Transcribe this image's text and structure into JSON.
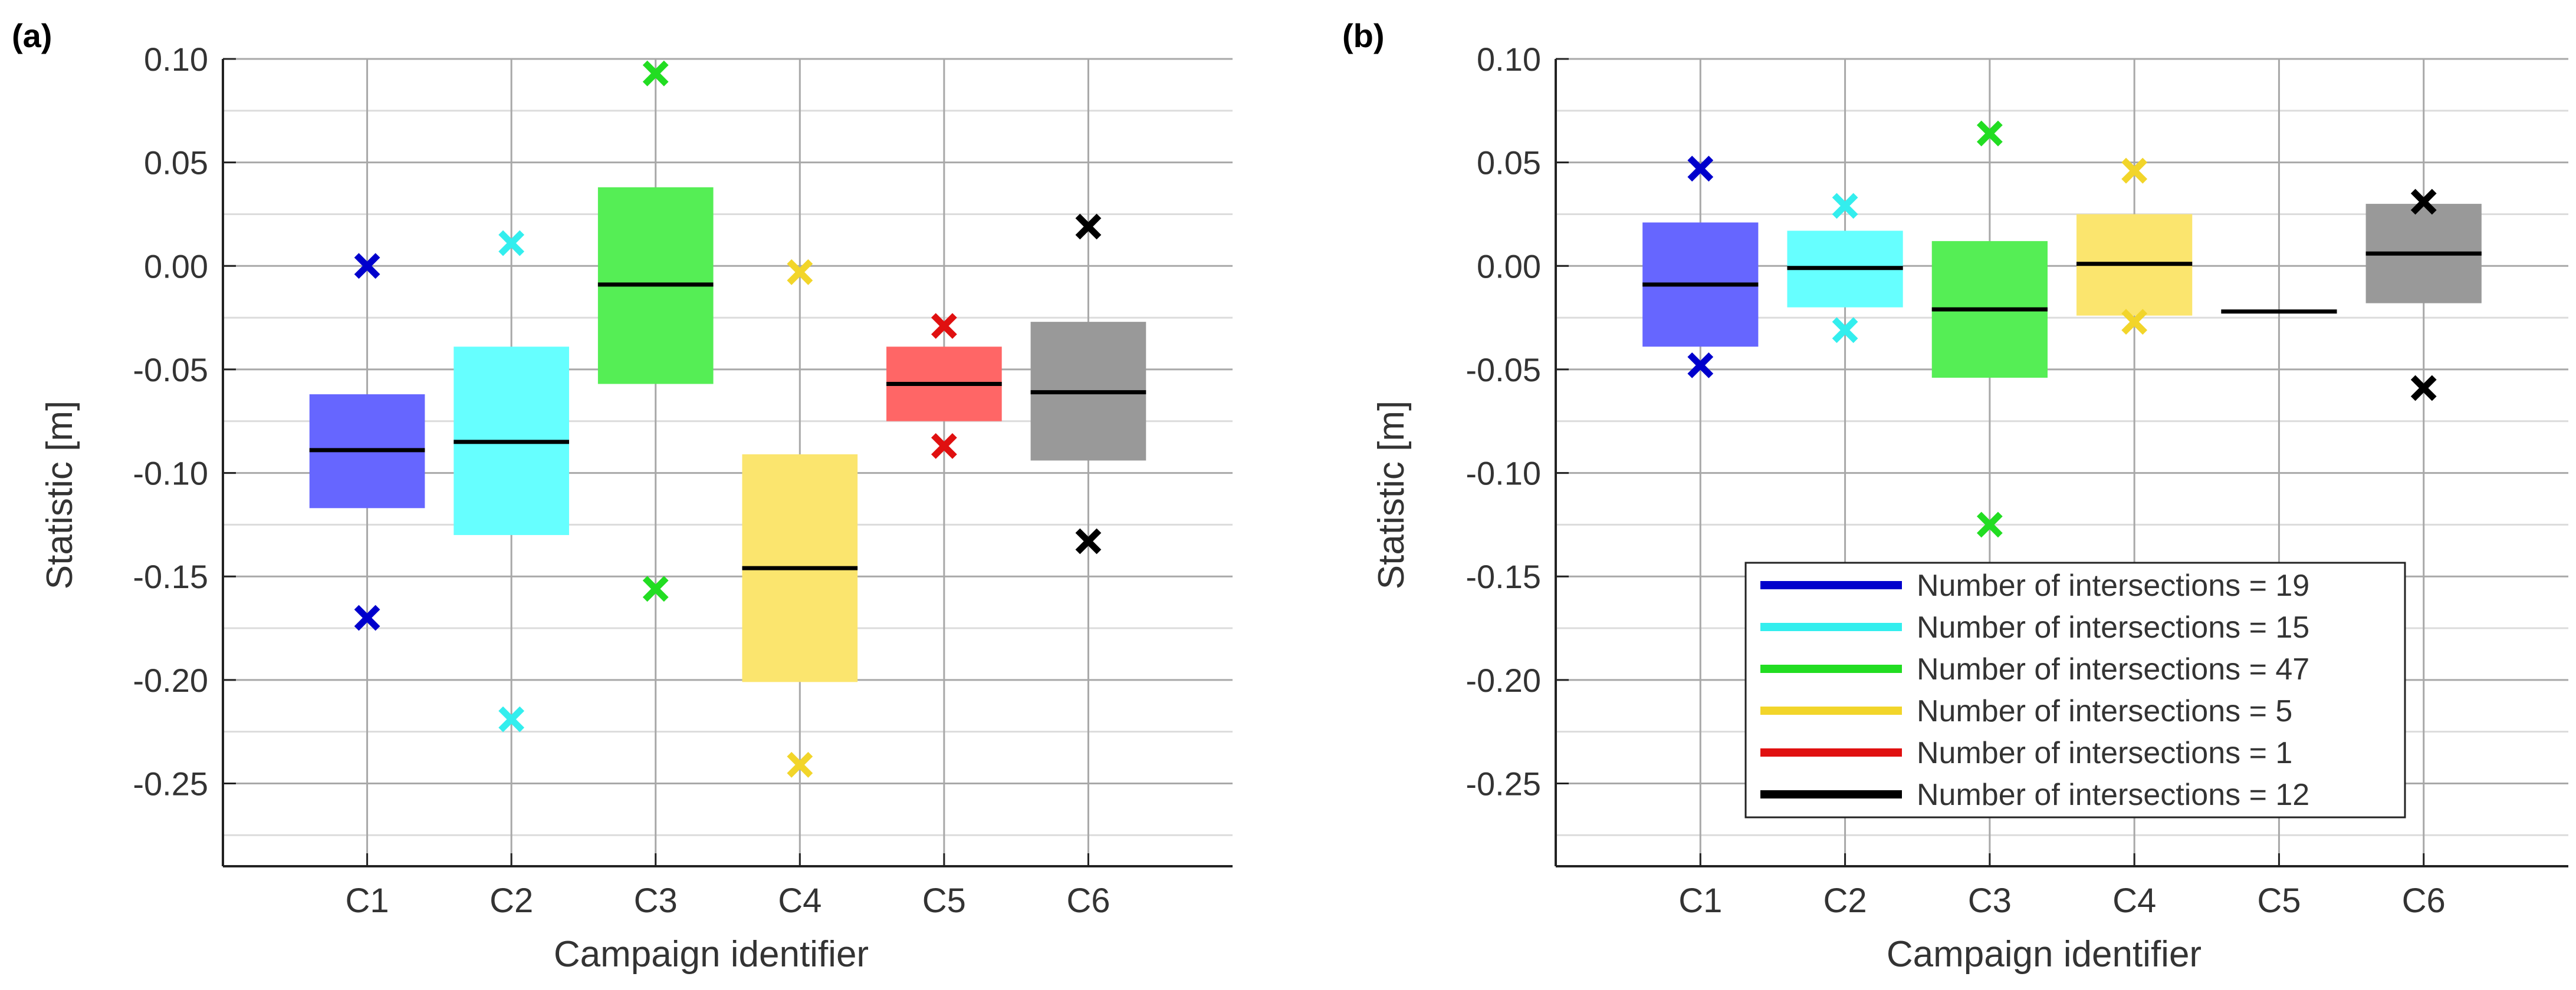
{
  "chart_data": [
    {
      "panel_label": "(a)",
      "type": "box",
      "xlabel": "Campaign identifier",
      "ylabel": "Statistic [m]",
      "ylim": [
        -0.29,
        0.1
      ],
      "yticks": [
        0.1,
        0.05,
        0.0,
        -0.05,
        -0.1,
        -0.15,
        -0.2,
        -0.25
      ],
      "ytick_labels": [
        "0.10",
        "0.05",
        "0.00",
        "-0.05",
        "-0.10",
        "-0.15",
        "-0.20",
        "-0.25"
      ],
      "grid": true,
      "categories": [
        "C1",
        "C2",
        "C3",
        "C4",
        "C5",
        "C6"
      ],
      "boxes": [
        {
          "campaign": "C1",
          "q1": -0.117,
          "q3": -0.062,
          "median": -0.089,
          "min": -0.17,
          "max": 0.0,
          "color": "#0000cc",
          "fill": "#6666ff"
        },
        {
          "campaign": "C2",
          "q1": -0.13,
          "q3": -0.039,
          "median": -0.085,
          "min": -0.219,
          "max": 0.011,
          "color": "#33eeee",
          "fill": "#66ffff"
        },
        {
          "campaign": "C3",
          "q1": -0.057,
          "q3": 0.038,
          "median": -0.009,
          "min": -0.156,
          "max": 0.093,
          "color": "#22dd22",
          "fill": "#55ee55"
        },
        {
          "campaign": "C4",
          "q1": -0.201,
          "q3": -0.091,
          "median": -0.146,
          "min": -0.241,
          "max": -0.003,
          "color": "#f2d52a",
          "fill": "#fbe56e"
        },
        {
          "campaign": "C5",
          "q1": -0.075,
          "q3": -0.039,
          "median": -0.057,
          "min": -0.087,
          "max": -0.029,
          "color": "#e01010",
          "fill": "#ff6666"
        },
        {
          "campaign": "C6",
          "q1": -0.094,
          "q3": -0.027,
          "median": -0.061,
          "min": -0.133,
          "max": 0.019,
          "color": "#000000",
          "fill": "#999999"
        }
      ]
    },
    {
      "panel_label": "(b)",
      "type": "box",
      "xlabel": "Campaign identifier",
      "ylabel": "Statistic [m]",
      "ylim": [
        -0.29,
        0.1
      ],
      "yticks": [
        0.1,
        0.05,
        0.0,
        -0.05,
        -0.1,
        -0.15,
        -0.2,
        -0.25
      ],
      "ytick_labels": [
        "0.10",
        "0.05",
        "0.00",
        "-0.05",
        "-0.10",
        "-0.15",
        "-0.20",
        "-0.25"
      ],
      "grid": true,
      "categories": [
        "C1",
        "C2",
        "C3",
        "C4",
        "C5",
        "C6"
      ],
      "legend_position": "bottom-right",
      "legend": [
        {
          "label": "Number of intersections = 19",
          "color": "#0000cc"
        },
        {
          "label": "Number of intersections = 15",
          "color": "#33eeee"
        },
        {
          "label": "Number of intersections = 47",
          "color": "#22dd22"
        },
        {
          "label": "Number of intersections = 5",
          "color": "#f2d52a"
        },
        {
          "label": "Number of intersections = 1",
          "color": "#e01010"
        },
        {
          "label": "Number of intersections = 12",
          "color": "#000000"
        }
      ],
      "boxes": [
        {
          "campaign": "C1",
          "q1": -0.039,
          "q3": 0.021,
          "median": -0.009,
          "min": -0.048,
          "max": 0.047,
          "color": "#0000cc",
          "fill": "#6666ff"
        },
        {
          "campaign": "C2",
          "q1": -0.02,
          "q3": 0.017,
          "median": -0.001,
          "min": -0.031,
          "max": 0.029,
          "color": "#33eeee",
          "fill": "#66ffff"
        },
        {
          "campaign": "C3",
          "q1": -0.054,
          "q3": 0.012,
          "median": -0.021,
          "min": -0.125,
          "max": 0.064,
          "color": "#22dd22",
          "fill": "#55ee55"
        },
        {
          "campaign": "C4",
          "q1": -0.024,
          "q3": 0.025,
          "median": 0.001,
          "min": -0.027,
          "max": 0.046,
          "color": "#f2d52a",
          "fill": "#fbe56e"
        },
        {
          "campaign": "C5",
          "q1": -0.022,
          "q3": -0.022,
          "median": -0.022,
          "min": null,
          "max": null,
          "color": "#e01010",
          "fill": "#ff6666"
        },
        {
          "campaign": "C6",
          "q1": -0.018,
          "q3": 0.03,
          "median": 0.006,
          "min": -0.059,
          "max": 0.031,
          "color": "#000000",
          "fill": "#999999"
        }
      ]
    }
  ]
}
